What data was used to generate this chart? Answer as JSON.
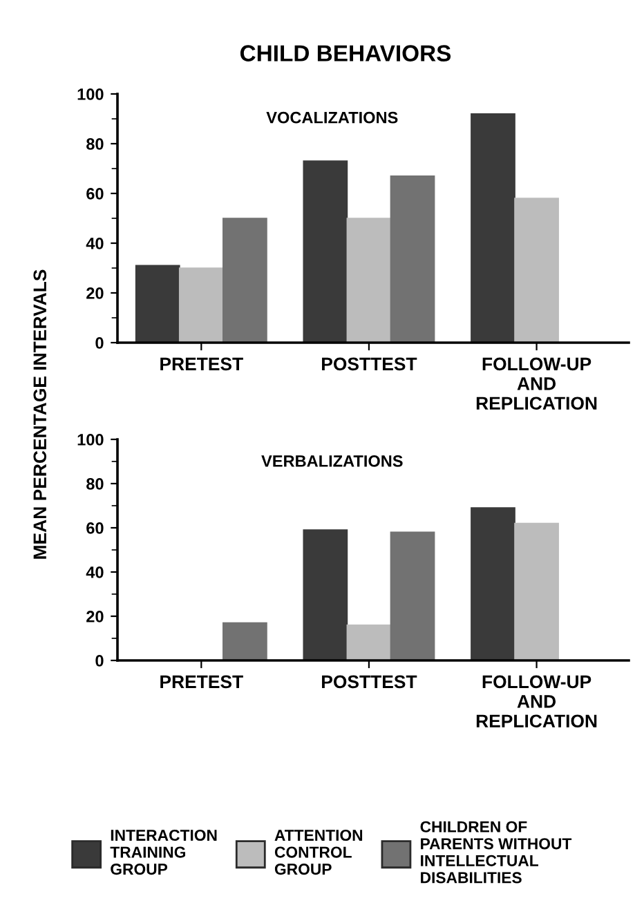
{
  "chart_data": [
    {
      "type": "bar",
      "title": "CHILD BEHAVIORS",
      "subtitle": "VOCALIZATIONS",
      "ylabel": "MEAN PERCENTAGE INTERVALS",
      "categories": [
        "PRETEST",
        "POSTTEST",
        "FOLLOW-UP\nAND\nREPLICATION"
      ],
      "series": [
        {
          "name": "INTERACTION\nTRAINING\nGROUP",
          "color": "#3a3a3a",
          "values": [
            31,
            73,
            92
          ]
        },
        {
          "name": "ATTENTION\nCONTROL\nGROUP",
          "color": "#bcbcbc",
          "values": [
            30,
            50,
            58
          ]
        },
        {
          "name": "CHILDREN OF\nPARENTS WITHOUT\nINTELLECTUAL\nDISABILITIES",
          "color": "#727272",
          "values": [
            50,
            67,
            null
          ]
        }
      ],
      "ylim": [
        0,
        100
      ],
      "yticks": [
        0,
        20,
        40,
        60,
        80,
        100
      ],
      "grid": false,
      "legend": "bottom"
    },
    {
      "type": "bar",
      "subtitle": "VERBALIZATIONS",
      "categories": [
        "PRETEST",
        "POSTTEST",
        "FOLLOW-UP\nAND\nREPLICATION"
      ],
      "series": [
        {
          "color": "#3a3a3a",
          "values": [
            0,
            59,
            69
          ]
        },
        {
          "color": "#bcbcbc",
          "values": [
            0,
            16,
            62
          ]
        },
        {
          "color": "#727272",
          "values": [
            17,
            58,
            null
          ]
        }
      ],
      "ylim": [
        0,
        100
      ],
      "yticks": [
        0,
        20,
        40,
        60,
        80,
        100
      ],
      "grid": false
    }
  ]
}
